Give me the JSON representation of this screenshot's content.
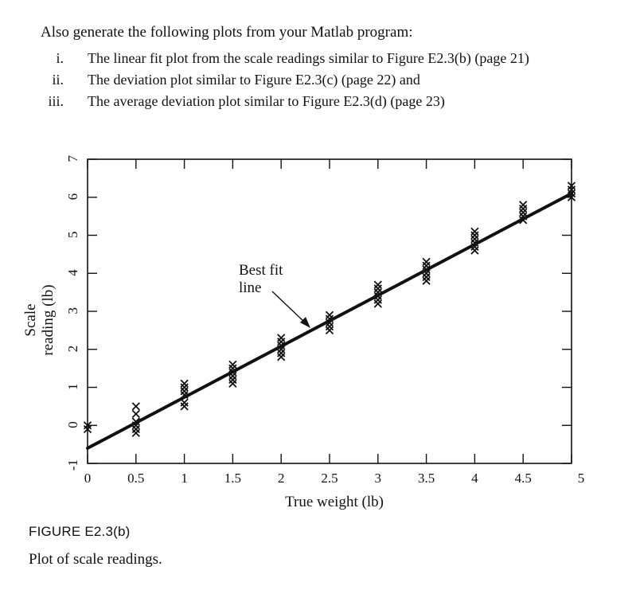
{
  "intro": "Also generate the following plots from your Matlab program:",
  "tasks": [
    {
      "num": "i.",
      "text": "The linear fit plot from the scale readings similar to Figure E2.3(b) (page 21)"
    },
    {
      "num": "ii.",
      "text": "The deviation plot similar to Figure E2.3(c) (page 22) and"
    },
    {
      "num": "iii.",
      "text": "The average deviation plot similar to Figure E2.3(d) (page 23)"
    }
  ],
  "figure": {
    "label": "FIGURE E2.3(b)",
    "caption": "Plot of scale readings."
  },
  "chart_data": {
    "type": "scatter",
    "xlabel": "True weight (lb)",
    "ylabel_lines": [
      "Scale",
      "reading (lb)"
    ],
    "xlim": [
      0,
      5
    ],
    "ylim": [
      -1,
      7
    ],
    "xticks": [
      "0",
      "0.5",
      "1",
      "1.5",
      "2",
      "2.5",
      "3",
      "3.5",
      "4",
      "4.5",
      "5"
    ],
    "yticks": [
      "-1",
      "0",
      "1",
      "2",
      "3",
      "4",
      "5",
      "6",
      "7"
    ],
    "annotation": {
      "lines": [
        "Best fit",
        "line"
      ]
    },
    "best_fit": {
      "slope": 1.34,
      "intercept": -0.6
    },
    "marker_color": "#111111",
    "series": [
      {
        "x": [
          0,
          0,
          0.5,
          0.5,
          0.5,
          0.5,
          0.5,
          0.5,
          1,
          1,
          1,
          1,
          1,
          1,
          1.5,
          1.5,
          1.5,
          1.5,
          1.5,
          1.5,
          2,
          2,
          2,
          2,
          2,
          2,
          2.5,
          2.5,
          2.5,
          2.5,
          2.5,
          3,
          3,
          3,
          3,
          3,
          3,
          3.5,
          3.5,
          3.5,
          3.5,
          3.5,
          3.5,
          4,
          4,
          4,
          4,
          4,
          4,
          4.5,
          4.5,
          4.5,
          4.5,
          4.5,
          5,
          5,
          5,
          5
        ],
        "y": [
          0,
          -0.1,
          0.5,
          0.3,
          0.1,
          0,
          -0.1,
          -0.2,
          1.0,
          0.8,
          0.6,
          0.5,
          1.1,
          0.9,
          1.6,
          1.5,
          1.3,
          1.2,
          1.1,
          1.4,
          2.3,
          2.1,
          1.9,
          1.8,
          2.0,
          2.2,
          2.9,
          2.7,
          2.6,
          2.5,
          2.8,
          3.7,
          3.5,
          3.4,
          3.3,
          3.2,
          3.6,
          4.3,
          4.1,
          4.0,
          3.9,
          3.8,
          4.2,
          5.1,
          4.9,
          4.8,
          4.7,
          4.6,
          5.0,
          5.8,
          5.6,
          5.5,
          5.4,
          5.7,
          6.2,
          6.1,
          6.0,
          6.3
        ]
      }
    ]
  }
}
